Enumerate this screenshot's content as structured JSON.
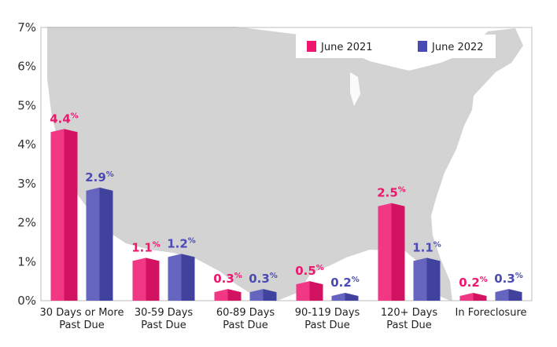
{
  "chart_data": {
    "type": "bar",
    "title": "",
    "xlabel": "",
    "ylabel": "",
    "ylim": [
      0,
      7
    ],
    "yticks": [
      "0%",
      "1%",
      "2%",
      "3%",
      "4%",
      "5%",
      "6%",
      "7%"
    ],
    "categories": [
      [
        "30 Days or More",
        "Past Due"
      ],
      [
        "30-59 Days",
        "Past Due"
      ],
      [
        "60-89 Days",
        "Past Due"
      ],
      [
        "90-119 Days",
        "Past Due"
      ],
      [
        "120+ Days",
        "Past Due"
      ],
      [
        "In Foreclosure"
      ]
    ],
    "series": [
      {
        "name": "June 2021",
        "color": "#f0156e",
        "values": [
          4.4,
          1.1,
          0.3,
          0.5,
          2.5,
          0.2
        ]
      },
      {
        "name": "June 2022",
        "color": "#4a4ab4",
        "values": [
          2.9,
          1.2,
          0.3,
          0.2,
          1.1,
          0.3
        ]
      }
    ],
    "legend_position": "top-right",
    "grid": false,
    "background": "map-of-united-states"
  }
}
